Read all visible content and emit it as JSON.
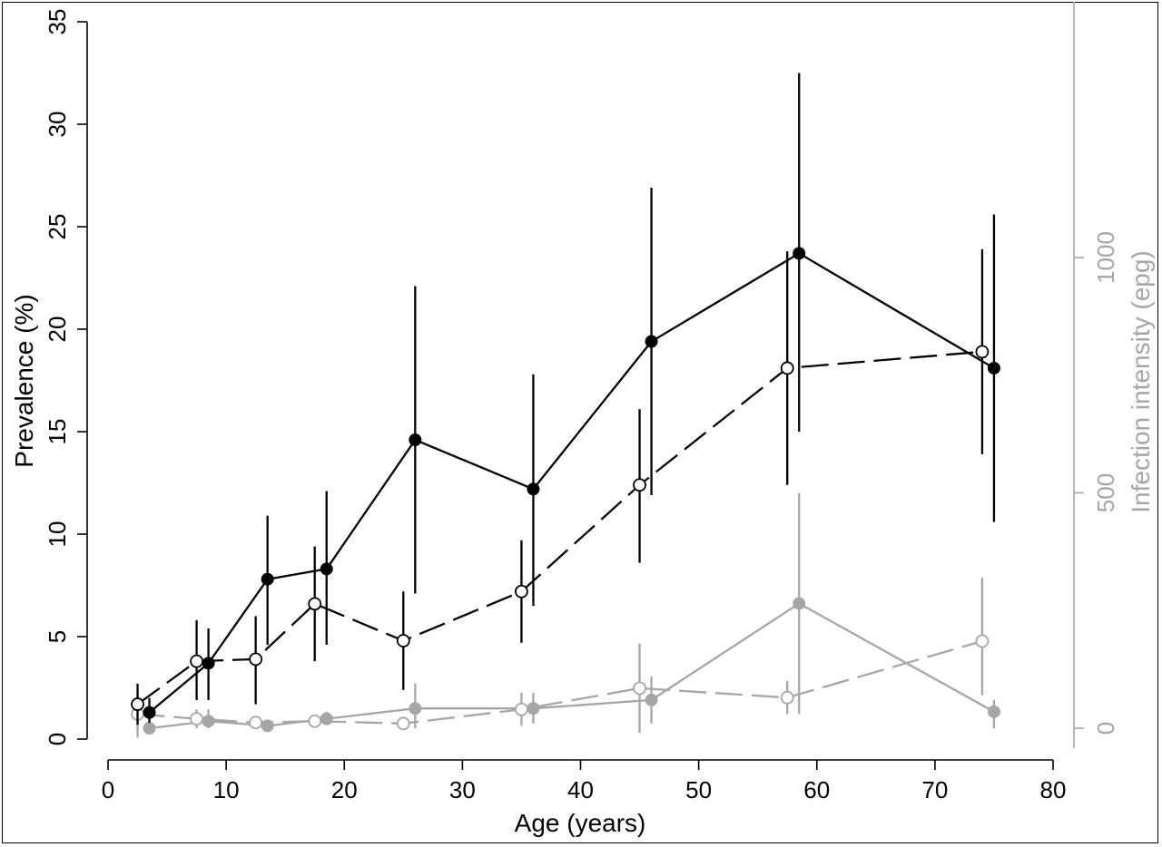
{
  "chart_data": {
    "type": "line",
    "xlabel": "Age (years)",
    "ylabel_left": "Prevalence (%)",
    "ylabel_right": "Infection intensity (epg)",
    "xlim": [
      0,
      80
    ],
    "ylim_left": [
      0,
      35
    ],
    "ylim_right": [
      0,
      1000
    ],
    "x_ticks": [
      "0",
      "10",
      "20",
      "30",
      "40",
      "50",
      "60",
      "70",
      "80"
    ],
    "y_left_ticks": [
      "0",
      "5",
      "10",
      "15",
      "20",
      "25",
      "30",
      "35"
    ],
    "y_right_ticks": [
      "0",
      "500",
      "1000"
    ],
    "colors": {
      "black": "#000000",
      "gray": "#a6a6a6"
    },
    "series": [
      {
        "axis": "left",
        "color": "#000000",
        "marker": "filled",
        "line": "solid",
        "points": [
          {
            "x": 3.5,
            "y": 1.3,
            "lo": 0.8,
            "hi": 2.0
          },
          {
            "x": 8.5,
            "y": 3.7,
            "lo": 1.9,
            "hi": 5.4
          },
          {
            "x": 13.5,
            "y": 7.8,
            "lo": 4.6,
            "hi": 10.9
          },
          {
            "x": 18.5,
            "y": 8.3,
            "lo": 4.6,
            "hi": 12.1
          },
          {
            "x": 26,
            "y": 14.6,
            "lo": 7.1,
            "hi": 22.1
          },
          {
            "x": 36,
            "y": 12.2,
            "lo": 6.5,
            "hi": 17.8
          },
          {
            "x": 46,
            "y": 19.4,
            "lo": 11.9,
            "hi": 26.9
          },
          {
            "x": 58.5,
            "y": 23.7,
            "lo": 15.0,
            "hi": 32.5
          },
          {
            "x": 75,
            "y": 18.1,
            "lo": 10.6,
            "hi": 25.6
          }
        ]
      },
      {
        "axis": "left",
        "color": "#000000",
        "marker": "open",
        "line": "dashed",
        "points": [
          {
            "x": 2.5,
            "y": 1.7,
            "lo": 0.7,
            "hi": 2.7
          },
          {
            "x": 7.5,
            "y": 3.8,
            "lo": 1.9,
            "hi": 5.8
          },
          {
            "x": 12.5,
            "y": 3.9,
            "lo": 1.7,
            "hi": 6.0
          },
          {
            "x": 17.5,
            "y": 6.6,
            "lo": 3.8,
            "hi": 9.4
          },
          {
            "x": 25,
            "y": 4.8,
            "lo": 2.4,
            "hi": 7.2
          },
          {
            "x": 35,
            "y": 7.2,
            "lo": 4.7,
            "hi": 9.7
          },
          {
            "x": 45,
            "y": 12.4,
            "lo": 8.6,
            "hi": 16.1
          },
          {
            "x": 57.5,
            "y": 18.1,
            "lo": 12.4,
            "hi": 23.8
          },
          {
            "x": 74,
            "y": 18.9,
            "lo": 13.9,
            "hi": 23.9
          }
        ]
      },
      {
        "axis": "right",
        "color": "#a6a6a6",
        "marker": "filled",
        "line": "solid",
        "points": [
          {
            "x": 3.5,
            "y": 0,
            "lo": 0,
            "hi": 30
          },
          {
            "x": 8.5,
            "y": 15,
            "lo": 0,
            "hi": 40
          },
          {
            "x": 13.5,
            "y": 5,
            "lo": 0,
            "hi": 15
          },
          {
            "x": 18.5,
            "y": 20,
            "lo": 10,
            "hi": 35
          },
          {
            "x": 26,
            "y": 42,
            "lo": 0,
            "hi": 95
          },
          {
            "x": 36,
            "y": 42,
            "lo": 10,
            "hi": 75
          },
          {
            "x": 46,
            "y": 60,
            "lo": 10,
            "hi": 110
          },
          {
            "x": 58.5,
            "y": 265,
            "lo": 30,
            "hi": 500
          },
          {
            "x": 75,
            "y": 35,
            "lo": 0,
            "hi": 60
          }
        ]
      },
      {
        "axis": "right",
        "color": "#a6a6a6",
        "marker": "open",
        "line": "dashed",
        "points": [
          {
            "x": 2.5,
            "y": 30,
            "lo": -20,
            "hi": 80
          },
          {
            "x": 7.5,
            "y": 20,
            "lo": 0,
            "hi": 40
          },
          {
            "x": 12.5,
            "y": 12,
            "lo": 0,
            "hi": 25
          },
          {
            "x": 17.5,
            "y": 15,
            "lo": 5,
            "hi": 25
          },
          {
            "x": 25,
            "y": 10,
            "lo": 0,
            "hi": 20
          },
          {
            "x": 35,
            "y": 40,
            "lo": 5,
            "hi": 75
          },
          {
            "x": 45,
            "y": 85,
            "lo": -10,
            "hi": 180
          },
          {
            "x": 57.5,
            "y": 65,
            "lo": 30,
            "hi": 100
          },
          {
            "x": 74,
            "y": 185,
            "lo": 70,
            "hi": 320
          }
        ]
      }
    ]
  }
}
